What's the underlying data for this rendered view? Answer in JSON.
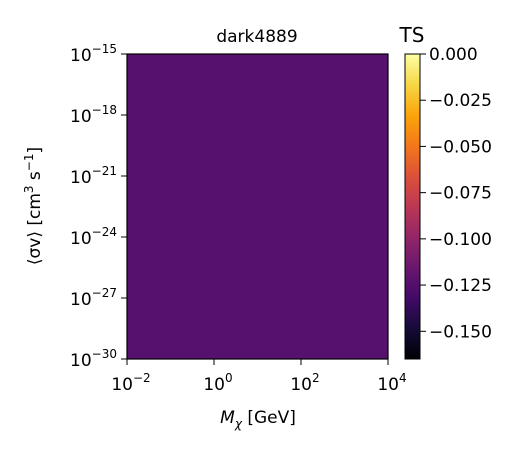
{
  "chart_data": {
    "type": "heatmap",
    "title": "dark4889",
    "xlabel": "M_χ [GeV]",
    "xlabel_parts": {
      "symbol": "M",
      "sub": "χ",
      "unit": " [GeV]"
    },
    "ylabel": "⟨σv⟩ [cm³ s⁻¹]",
    "ylabel_parts": {
      "main": "⟨σv⟩ [cm",
      "sup1": "3",
      "mid": " s",
      "sup2": "−1",
      "end": "]"
    },
    "x_scale": "log",
    "y_scale": "log",
    "x_exponents": [
      -2,
      0,
      2,
      4
    ],
    "y_exponents": [
      -30,
      -27,
      -24,
      -21,
      -18,
      -15
    ],
    "xlim": [
      0.01,
      10000
    ],
    "ylim": [
      1e-30,
      1e-15
    ],
    "fill_value": -0.13,
    "fill_color": "#56106e",
    "colorbar": {
      "label": "TS",
      "colormap": "inferno",
      "range": [
        -0.165,
        0.0
      ],
      "ticks": [
        0.0,
        -0.025,
        -0.05,
        -0.075,
        -0.1,
        -0.125,
        -0.15
      ],
      "tick_labels": [
        "0.000",
        "−0.025",
        "−0.050",
        "−0.075",
        "−0.100",
        "−0.125",
        "−0.150"
      ]
    }
  }
}
